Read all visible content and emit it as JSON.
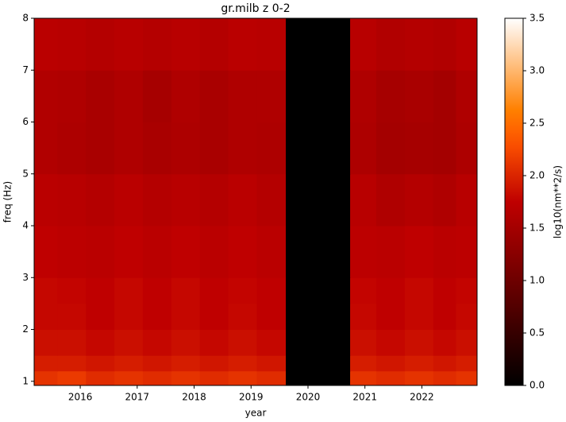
{
  "chart_data": {
    "type": "heatmap",
    "title": "gr.milb z 0-2",
    "x_label": "year",
    "y_label": "freq (Hz)",
    "colorbar_label": "log10(nm**2/s)",
    "colormap": "gist_heat",
    "xlim": [
      2015.19,
      2022.97
    ],
    "xticks": [
      2016,
      2017,
      2018,
      2019,
      2020,
      2021,
      2022
    ],
    "ylim": [
      0.92,
      8
    ],
    "yticks": [
      1,
      2,
      3,
      4,
      5,
      6,
      7,
      8
    ],
    "clim": [
      0,
      3.5
    ],
    "cticks": [
      {
        "value": 0,
        "label": "0.0"
      },
      0.5,
      {
        "value": 1,
        "label": "1.0"
      },
      1.5,
      {
        "value": 2,
        "label": "2.0"
      },
      2.5,
      {
        "value": 3,
        "label": "3.0"
      },
      3.5
    ],
    "x_edges": [
      2015.19,
      2015.6,
      2016.1,
      2016.6,
      2017.1,
      2017.6,
      2018.1,
      2018.6,
      2019.1,
      2019.61,
      2020.74,
      2021.2,
      2021.7,
      2022.2,
      2022.6,
      2022.97
    ],
    "y_edges": [
      0.92,
      1.2,
      1.5,
      2,
      2.5,
      3,
      4,
      5,
      6,
      7,
      8
    ],
    "z": [
      [
        2.1,
        2.15,
        2.05,
        2.1,
        2.05,
        2.1,
        2.05,
        2.1,
        2.05,
        0,
        2.1,
        2.05,
        2.1,
        2.05,
        2.1
      ],
      [
        1.95,
        1.95,
        1.9,
        1.95,
        1.9,
        1.95,
        1.9,
        1.95,
        1.9,
        0,
        1.95,
        1.9,
        1.95,
        1.9,
        1.95
      ],
      [
        1.85,
        1.85,
        1.8,
        1.85,
        1.8,
        1.85,
        1.8,
        1.85,
        1.8,
        0,
        1.85,
        1.8,
        1.85,
        1.8,
        1.85
      ],
      [
        1.8,
        1.8,
        1.75,
        1.8,
        1.75,
        1.8,
        1.75,
        1.8,
        1.75,
        0,
        1.8,
        1.75,
        1.8,
        1.75,
        1.8
      ],
      [
        1.8,
        1.78,
        1.75,
        1.8,
        1.75,
        1.8,
        1.75,
        1.78,
        1.75,
        0,
        1.78,
        1.75,
        1.8,
        1.75,
        1.78
      ],
      [
        1.75,
        1.72,
        1.7,
        1.75,
        1.7,
        1.75,
        1.7,
        1.75,
        1.7,
        0,
        1.72,
        1.7,
        1.75,
        1.7,
        1.72
      ],
      [
        1.7,
        1.68,
        1.65,
        1.7,
        1.65,
        1.68,
        1.65,
        1.7,
        1.65,
        0,
        1.68,
        1.6,
        1.65,
        1.6,
        1.68
      ],
      [
        1.62,
        1.58,
        1.55,
        1.6,
        1.55,
        1.58,
        1.55,
        1.6,
        1.58,
        0,
        1.58,
        1.5,
        1.52,
        1.5,
        1.58
      ],
      [
        1.62,
        1.6,
        1.55,
        1.6,
        1.52,
        1.6,
        1.55,
        1.6,
        1.6,
        0,
        1.6,
        1.52,
        1.55,
        1.5,
        1.6
      ],
      [
        1.7,
        1.68,
        1.65,
        1.68,
        1.65,
        1.68,
        1.65,
        1.7,
        1.68,
        0,
        1.68,
        1.62,
        1.65,
        1.62,
        1.68
      ]
    ]
  }
}
